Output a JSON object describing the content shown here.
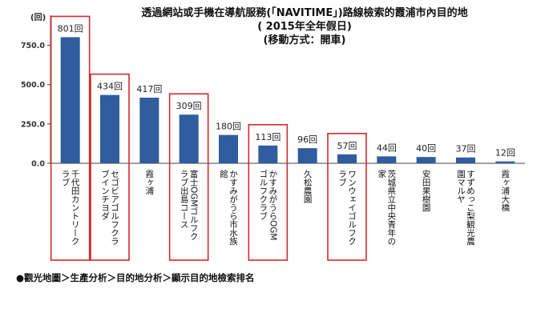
{
  "header": {
    "title": "透過網站或手機在導航服務(「NAVITIME」)路線檢索的霞浦市內目的地",
    "subtitle": "( 2015年全年假日)",
    "subtitle2": "(移動方式：開車)",
    "unit": "(回)"
  },
  "footer": {
    "breadcrumb": "●觀光地圖＞生產分析＞目的地分析＞顯示目的地檢索排名"
  },
  "colors": {
    "bar": "#2F5D9E",
    "highlight_box": "#D42A2A",
    "axis": "#444444",
    "grid": "#BBBBBB"
  },
  "chart_data": {
    "type": "bar",
    "title": "透過網站或手機在導航服務(「NAVITIME」)路線檢索的霞浦市內目的地",
    "ylabel": "(回)",
    "ylim": [
      0,
      900
    ],
    "yticks": [
      0,
      250,
      500,
      750
    ],
    "ytick_labels": [
      "0.0",
      "250.0",
      "500.0",
      "750.0"
    ],
    "value_suffix": "回",
    "categories": [
      "千代田カントリークラブ",
      "セゴビアゴルフクラブインチヨダ",
      "霞ヶ浦",
      "富士OGMゴルフクラブ出島コース",
      "かすみがうら市水族館",
      "かすみがうらOGMゴルフクラブ",
      "久松農園",
      "ワンウェイゴルフクラブ",
      "茨城県立中央青年の家",
      "安田果樹園",
      "すずめっこ梨観光農園マルヤ",
      "霞ヶ浦大橋"
    ],
    "values": [
      801,
      434,
      417,
      309,
      180,
      113,
      96,
      57,
      44,
      40,
      37,
      12
    ],
    "highlighted": [
      0,
      1,
      3,
      5,
      7
    ]
  }
}
